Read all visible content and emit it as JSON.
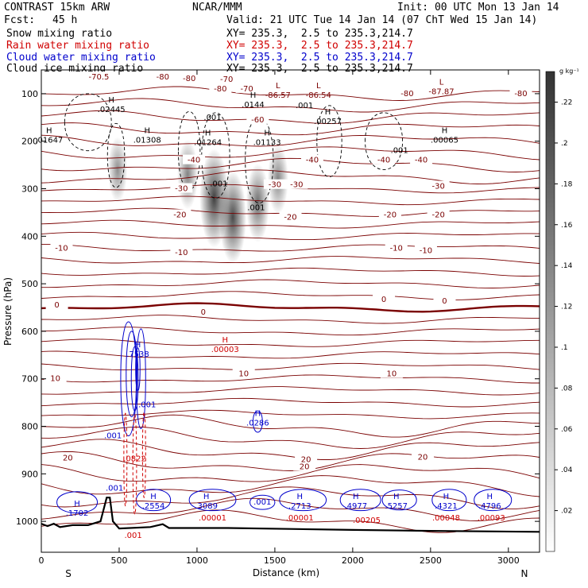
{
  "header": {
    "model": "CONTRAST 15km ARW",
    "center": "NCAR/MMM",
    "init": "Init: 00 UTC Mon 13 Jan 14",
    "fcst_label": "Fcst:",
    "fcst_value": "45 h",
    "valid": "Valid: 21 UTC Tue 14 Jan 14 (07 ChT Wed 15 Jan 14)",
    "fields": [
      {
        "name": "Snow mixing ratio",
        "xy": "XY= 235.3,  2.5 to 235.3,214.7",
        "color": "#000000"
      },
      {
        "name": "Rain water mixing ratio",
        "xy": "XY= 235.3,  2.5 to 235.3,214.7",
        "color": "#d00000"
      },
      {
        "name": "Cloud water mixing ratio",
        "xy": "XY= 235.3,  2.5 to 235.3,214.7",
        "color": "#0000cc"
      },
      {
        "name": "Cloud ice mixing ratio",
        "xy": "XY= 235.3,  2.5 to 235.3,214.7",
        "color": "#000000"
      }
    ]
  },
  "chart_data": {
    "type": "contour",
    "xlabel": "Distance (km)",
    "ylabel": "Pressure (hPa)",
    "x_ticks": [
      0,
      500,
      1000,
      1500,
      2000,
      2500,
      3000
    ],
    "x_range": [
      0,
      3200
    ],
    "y_ticks": [
      100,
      200,
      300,
      400,
      500,
      600,
      700,
      800,
      900,
      1000
    ],
    "y_range": [
      50,
      1065
    ],
    "y_axis": "pressure (increasing downward)",
    "x_end_labels": {
      "left": "S",
      "right": "N"
    },
    "colorbar": {
      "unit": "g kg⁻¹",
      "ticks": [
        ".02",
        ".04",
        ".06",
        ".08",
        ".1",
        ".12",
        ".14",
        ".16",
        ".18",
        ".2",
        ".22"
      ],
      "range": [
        0,
        0.235
      ],
      "color_low": "#ffffff",
      "color_high": "#333333"
    },
    "temperature_isotherms": {
      "color": "#7a0000",
      "labels": [
        {
          "x": 370,
          "p": 65,
          "text": "-70.5"
        },
        {
          "x": 780,
          "p": 65,
          "text": "-80"
        },
        {
          "x": 950,
          "p": 68,
          "text": "-80"
        },
        {
          "x": 1190,
          "p": 70,
          "text": "-70"
        },
        {
          "x": 1150,
          "p": 90,
          "text": "-80"
        },
        {
          "x": 1320,
          "p": 90,
          "text": "-70"
        },
        {
          "x": 2350,
          "p": 100,
          "text": "-80"
        },
        {
          "x": 3080,
          "p": 100,
          "text": "-80"
        },
        {
          "x": 1390,
          "p": 155,
          "text": "-60"
        },
        {
          "x": 980,
          "p": 240,
          "text": "-40"
        },
        {
          "x": 1740,
          "p": 240,
          "text": "-40"
        },
        {
          "x": 2200,
          "p": 240,
          "text": "-40"
        },
        {
          "x": 2440,
          "p": 240,
          "text": "-40"
        },
        {
          "x": 1500,
          "p": 292,
          "text": "-30"
        },
        {
          "x": 1640,
          "p": 292,
          "text": "-30"
        },
        {
          "x": 900,
          "p": 300,
          "text": "-30"
        },
        {
          "x": 2550,
          "p": 295,
          "text": "-30"
        },
        {
          "x": 890,
          "p": 355,
          "text": "-20"
        },
        {
          "x": 1600,
          "p": 360,
          "text": "-20"
        },
        {
          "x": 2240,
          "p": 355,
          "text": "-20"
        },
        {
          "x": 2550,
          "p": 355,
          "text": "-20"
        },
        {
          "x": 130,
          "p": 425,
          "text": "-10"
        },
        {
          "x": 900,
          "p": 435,
          "text": "-10"
        },
        {
          "x": 2280,
          "p": 425,
          "text": "-10"
        },
        {
          "x": 2470,
          "p": 430,
          "text": "-10"
        },
        {
          "x": 100,
          "p": 545,
          "text": "0"
        },
        {
          "x": 1040,
          "p": 560,
          "text": "0"
        },
        {
          "x": 2200,
          "p": 533,
          "text": "0"
        },
        {
          "x": 2590,
          "p": 537,
          "text": "0"
        },
        {
          "x": 1300,
          "p": 690,
          "text": "10"
        },
        {
          "x": 90,
          "p": 700,
          "text": "10"
        },
        {
          "x": 2250,
          "p": 690,
          "text": "10"
        },
        {
          "x": 170,
          "p": 867,
          "text": "20"
        },
        {
          "x": 2450,
          "p": 865,
          "text": "20"
        },
        {
          "x": 1690,
          "p": 885,
          "text": "20"
        },
        {
          "x": 1700,
          "p": 870,
          "text": "20"
        }
      ],
      "bold_zero": true
    },
    "extrema": [
      {
        "x": 450,
        "p": 125,
        "mark": "H",
        "value": ".02445",
        "color": "#000000"
      },
      {
        "x": 50,
        "p": 190,
        "mark": "H",
        "value": ".01647",
        "color": "#000000"
      },
      {
        "x": 680,
        "p": 190,
        "mark": "H",
        "value": ".01308",
        "color": "#000000"
      },
      {
        "x": 1070,
        "p": 195,
        "mark": "H",
        "value": ".01264",
        "color": "#000000"
      },
      {
        "x": 1450,
        "p": 195,
        "mark": "H",
        "value": ".01133",
        "color": "#000000"
      },
      {
        "x": 1360,
        "p": 115,
        "mark": "H",
        "value": ".0144",
        "color": "#000000"
      },
      {
        "x": 1840,
        "p": 150,
        "mark": "H",
        "value": ".00257",
        "color": "#000000"
      },
      {
        "x": 2590,
        "p": 190,
        "mark": "H",
        "value": ".00065",
        "color": "#000000"
      },
      {
        "x": 1520,
        "p": 95,
        "mark": "L",
        "value": "-86.57",
        "color": "#7a0000"
      },
      {
        "x": 1780,
        "p": 95,
        "mark": "L",
        "value": "-86.54",
        "color": "#7a0000"
      },
      {
        "x": 2570,
        "p": 88,
        "mark": "L",
        "value": "-87.87",
        "color": "#7a0000"
      },
      {
        "x": 620,
        "p": 640,
        "mark": "H",
        "value": ".7538",
        "color": "#0000cc"
      },
      {
        "x": 1180,
        "p": 630,
        "mark": "H",
        "value": ".00003",
        "color": "#d00000"
      },
      {
        "x": 1390,
        "p": 785,
        "mark": "H",
        "value": ".0286",
        "color": "#0000cc"
      },
      {
        "x": 230,
        "p": 975,
        "mark": "H",
        "value": ".1702",
        "color": "#0000cc"
      },
      {
        "x": 720,
        "p": 960,
        "mark": "H",
        "value": ".2554",
        "color": "#0000cc"
      },
      {
        "x": 1060,
        "p": 960,
        "mark": "H",
        "value": ".3089",
        "color": "#0000cc"
      },
      {
        "x": 1660,
        "p": 960,
        "mark": "H",
        "value": ".2713",
        "color": "#0000cc"
      },
      {
        "x": 2020,
        "p": 960,
        "mark": "H",
        "value": ".4977",
        "color": "#0000cc"
      },
      {
        "x": 2280,
        "p": 960,
        "mark": "H",
        "value": ".5257",
        "color": "#0000cc"
      },
      {
        "x": 2600,
        "p": 960,
        "mark": "H",
        "value": ".4321",
        "color": "#0000cc"
      },
      {
        "x": 2880,
        "p": 960,
        "mark": "H",
        "value": ".4796",
        "color": "#0000cc"
      },
      {
        "x": 600,
        "p": 860,
        "mark": "",
        "value": ".0822",
        "color": "#d00000"
      },
      {
        "x": 1100,
        "p": 985,
        "mark": "",
        "value": ".00001",
        "color": "#d00000"
      },
      {
        "x": 1660,
        "p": 985,
        "mark": "",
        "value": ".00001",
        "color": "#d00000"
      },
      {
        "x": 2090,
        "p": 990,
        "mark": "",
        "value": ".00205",
        "color": "#d00000"
      },
      {
        "x": 2600,
        "p": 985,
        "mark": "",
        "value": ".00048",
        "color": "#d00000"
      },
      {
        "x": 2890,
        "p": 985,
        "mark": "",
        "value": ".00093",
        "color": "#d00000"
      }
    ],
    "contour_labels": [
      {
        "x": 1100,
        "p": 150,
        "text": ".001",
        "color": "#000000"
      },
      {
        "x": 1690,
        "p": 125,
        "text": ".001",
        "color": "#000000"
      },
      {
        "x": 2300,
        "p": 220,
        "text": ".001",
        "color": "#000000"
      },
      {
        "x": 1140,
        "p": 290,
        "text": ".001",
        "color": "#000000"
      },
      {
        "x": 1380,
        "p": 340,
        "text": ".001",
        "color": "#000000"
      },
      {
        "x": 680,
        "p": 755,
        "text": ".001",
        "color": "#0000cc"
      },
      {
        "x": 460,
        "p": 820,
        "text": ".001",
        "color": "#0000cc"
      },
      {
        "x": 470,
        "p": 930,
        "text": ".001",
        "color": "#0000cc"
      },
      {
        "x": 1420,
        "p": 960,
        "text": ".001",
        "color": "#0000cc"
      },
      {
        "x": 590,
        "p": 1030,
        "text": ".001",
        "color": "#d00000"
      }
    ],
    "shaded_snow_cores": [
      {
        "x": 490,
        "p": 260,
        "peak": 0.08
      },
      {
        "x": 940,
        "p": 270,
        "peak": 0.1
      },
      {
        "x": 1110,
        "p": 320,
        "peak": 0.23
      },
      {
        "x": 1230,
        "p": 360,
        "peak": 0.2
      },
      {
        "x": 1390,
        "p": 330,
        "peak": 0.14
      },
      {
        "x": 1520,
        "p": 280,
        "peak": 0.1
      }
    ]
  }
}
